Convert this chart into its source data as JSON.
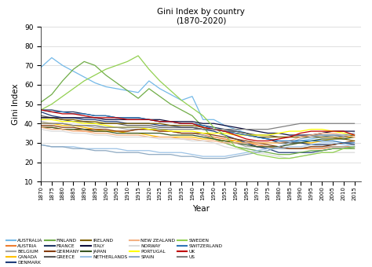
{
  "title": "Gini Index by country\n(1870-2020)",
  "xlabel": "Year",
  "ylabel": "Gini Index",
  "ylim": [
    10,
    90
  ],
  "yticks": [
    10,
    20,
    30,
    40,
    50,
    60,
    70,
    80,
    90
  ],
  "years": [
    1870,
    1875,
    1880,
    1885,
    1890,
    1895,
    1900,
    1905,
    1910,
    1915,
    1920,
    1925,
    1930,
    1935,
    1940,
    1945,
    1950,
    1955,
    1960,
    1965,
    1970,
    1975,
    1980,
    1985,
    1990,
    1995,
    2000,
    2005,
    2010,
    2015
  ],
  "countries": {
    "AUSTRALIA": [
      69,
      74,
      70,
      67,
      64,
      61,
      59,
      58,
      57,
      56,
      62,
      58,
      55,
      52,
      54,
      42,
      42,
      39,
      37,
      35,
      33,
      32,
      31,
      30,
      31,
      32,
      33,
      34,
      34,
      34
    ],
    "AUSTRIA": [
      38,
      38,
      37,
      37,
      36,
      36,
      36,
      36,
      36,
      37,
      37,
      36,
      36,
      35,
      35,
      34,
      33,
      32,
      31,
      30,
      29,
      28,
      27,
      27,
      27,
      27,
      27,
      28,
      28,
      28
    ],
    "BELGIUM": [
      41,
      40,
      40,
      39,
      39,
      38,
      38,
      38,
      37,
      37,
      37,
      37,
      36,
      35,
      35,
      34,
      32,
      31,
      30,
      28,
      28,
      27,
      27,
      27,
      27,
      28,
      28,
      28,
      28,
      27
    ],
    "CANADA": [
      40,
      40,
      39,
      39,
      38,
      37,
      36,
      36,
      35,
      35,
      34,
      33,
      33,
      33,
      33,
      32,
      32,
      31,
      31,
      30,
      30,
      30,
      30,
      30,
      30,
      30,
      31,
      32,
      33,
      33
    ],
    "DENMARK": [
      46,
      44,
      43,
      43,
      42,
      42,
      41,
      41,
      40,
      40,
      40,
      39,
      39,
      38,
      38,
      37,
      36,
      34,
      32,
      30,
      28,
      27,
      25,
      25,
      25,
      25,
      26,
      27,
      27,
      28
    ],
    "FINLAND": [
      51,
      55,
      62,
      68,
      72,
      70,
      65,
      61,
      57,
      53,
      58,
      54,
      50,
      47,
      44,
      38,
      32,
      30,
      28,
      27,
      26,
      25,
      24,
      24,
      25,
      26,
      26,
      27,
      27,
      27
    ],
    "FRANCE": [
      47,
      47,
      46,
      46,
      45,
      44,
      44,
      43,
      43,
      43,
      42,
      41,
      41,
      40,
      40,
      39,
      38,
      37,
      36,
      35,
      33,
      32,
      30,
      30,
      30,
      29,
      29,
      29,
      30,
      29
    ],
    "GERMANY": [
      39,
      39,
      38,
      38,
      37,
      37,
      37,
      36,
      36,
      37,
      37,
      36,
      36,
      35,
      35,
      35,
      34,
      33,
      32,
      31,
      30,
      29,
      28,
      27,
      27,
      28,
      28,
      29,
      30,
      31
    ],
    "GREECE": [
      44,
      43,
      42,
      41,
      41,
      40,
      40,
      40,
      39,
      39,
      39,
      38,
      38,
      38,
      38,
      37,
      37,
      36,
      36,
      35,
      34,
      34,
      33,
      33,
      33,
      34,
      34,
      34,
      33,
      34
    ],
    "IRELAND": [
      43,
      43,
      42,
      42,
      41,
      41,
      40,
      40,
      40,
      40,
      40,
      40,
      39,
      39,
      39,
      38,
      37,
      36,
      35,
      34,
      33,
      33,
      33,
      33,
      33,
      33,
      33,
      33,
      32,
      31
    ],
    "ITALY": [
      43,
      43,
      43,
      43,
      43,
      43,
      42,
      42,
      42,
      42,
      42,
      42,
      41,
      41,
      41,
      40,
      40,
      39,
      38,
      37,
      36,
      35,
      35,
      34,
      34,
      34,
      35,
      36,
      36,
      36
    ],
    "JAPAN": [
      38,
      38,
      37,
      37,
      37,
      36,
      36,
      35,
      35,
      35,
      35,
      35,
      34,
      34,
      34,
      33,
      32,
      31,
      30,
      29,
      28,
      28,
      28,
      29,
      30,
      31,
      32,
      32,
      32,
      33
    ],
    "NETHERLANDS": [
      29,
      28,
      28,
      28,
      27,
      27,
      27,
      27,
      26,
      26,
      26,
      25,
      25,
      25,
      24,
      23,
      23,
      23,
      24,
      25,
      26,
      27,
      27,
      28,
      28,
      29,
      30,
      30,
      29,
      28
    ],
    "NEW ZEALAND": [
      38,
      37,
      37,
      36,
      36,
      35,
      35,
      34,
      34,
      34,
      33,
      33,
      33,
      32,
      32,
      31,
      31,
      30,
      30,
      30,
      30,
      30,
      30,
      31,
      33,
      34,
      35,
      35,
      34,
      33
    ],
    "NORWAY": [
      37,
      36,
      36,
      35,
      35,
      34,
      34,
      33,
      33,
      33,
      33,
      32,
      32,
      32,
      31,
      31,
      30,
      28,
      27,
      26,
      25,
      24,
      23,
      22,
      23,
      24,
      25,
      25,
      25,
      25
    ],
    "PORTUGAL": [
      42,
      42,
      41,
      41,
      40,
      40,
      39,
      38,
      38,
      38,
      37,
      37,
      36,
      36,
      36,
      35,
      35,
      35,
      34,
      34,
      34,
      34,
      35,
      36,
      36,
      37,
      37,
      36,
      35,
      34
    ],
    "SPAIN": [
      29,
      28,
      28,
      27,
      27,
      26,
      26,
      25,
      25,
      25,
      24,
      24,
      24,
      23,
      23,
      22,
      22,
      22,
      23,
      24,
      25,
      26,
      28,
      30,
      32,
      33,
      34,
      34,
      34,
      35
    ],
    "SWEDEN": [
      47,
      50,
      54,
      58,
      62,
      65,
      68,
      70,
      72,
      75,
      68,
      62,
      57,
      52,
      48,
      44,
      38,
      34,
      28,
      26,
      24,
      23,
      22,
      22,
      23,
      24,
      25,
      25,
      27,
      28
    ],
    "SWITZERLAND": [
      47,
      46,
      46,
      45,
      45,
      44,
      44,
      43,
      43,
      43,
      42,
      41,
      41,
      40,
      40,
      39,
      37,
      36,
      35,
      34,
      33,
      32,
      31,
      31,
      31,
      31,
      31,
      31,
      30,
      30
    ],
    "UK": [
      47,
      46,
      45,
      45,
      44,
      43,
      43,
      43,
      42,
      42,
      42,
      41,
      41,
      40,
      40,
      38,
      37,
      36,
      34,
      32,
      31,
      31,
      32,
      33,
      35,
      36,
      36,
      36,
      36,
      34
    ],
    "US": [
      40,
      40,
      40,
      39,
      39,
      39,
      38,
      38,
      38,
      38,
      38,
      37,
      37,
      37,
      37,
      37,
      37,
      37,
      37,
      37,
      37,
      37,
      38,
      39,
      40,
      40,
      40,
      40,
      40,
      40
    ]
  },
  "colors": {
    "AUSTRALIA": "#74B9E8",
    "AUSTRIA": "#ED7D31",
    "BELGIUM": "#A5A5A5",
    "CANADA": "#FFC000",
    "DENMARK": "#1F3D7A",
    "FINLAND": "#70AD47",
    "FRANCE": "#203864",
    "GERMANY": "#843C0C",
    "GREECE": "#595959",
    "IRELAND": "#7F6000",
    "ITALY": "#0D0D3D",
    "JAPAN": "#375623",
    "NETHERLANDS": "#9DC3E6",
    "NEW ZEALAND": "#F4B183",
    "NORWAY": "#DBDBDB",
    "PORTUGAL": "#FFFF00",
    "SPAIN": "#8EA9C1",
    "SWEDEN": "#92D050",
    "SWITZERLAND": "#2E75B6",
    "UK": "#C00000",
    "US": "#808080"
  },
  "legend_order": [
    "AUSTRALIA",
    "AUSTRIA",
    "BELGIUM",
    "CANADA",
    "DENMARK",
    "FINLAND",
    "FRANCE",
    "GERMANY",
    "GREECE",
    "IRELAND",
    "ITALY",
    "JAPAN",
    "NETHERLANDS",
    "NEW ZEALAND",
    "NORWAY",
    "PORTUGAL",
    "SPAIN",
    "SWEDEN",
    "SWITZERLAND",
    "UK",
    "US"
  ]
}
